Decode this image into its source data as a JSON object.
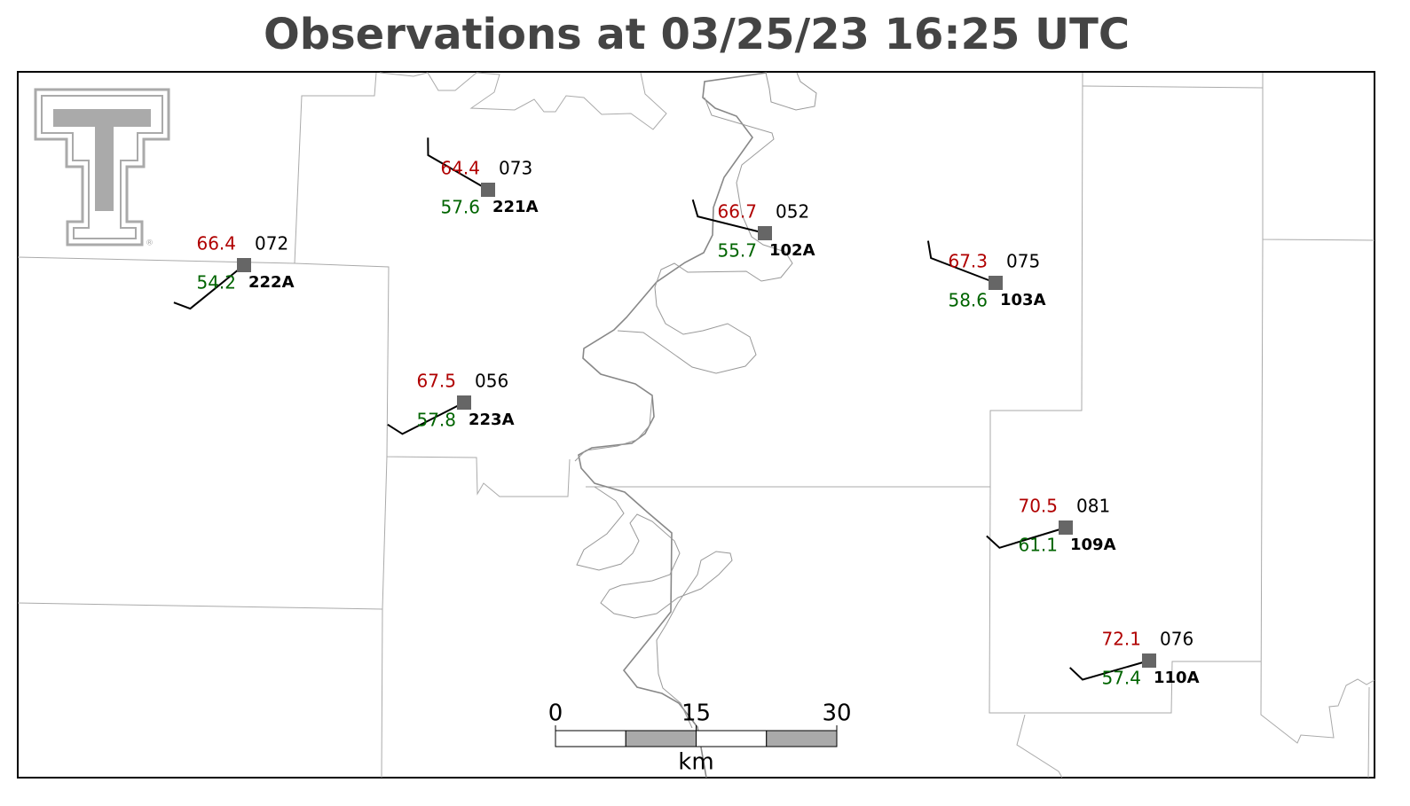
{
  "title": "Observations at 03/25/23 16:25 UTC",
  "stations": [
    {
      "id": "222A",
      "temperature": "66.4",
      "dewpoint": "54.2",
      "pressure": "072",
      "wind_dir": 231,
      "wind_speed": 10
    },
    {
      "id": "221A",
      "temperature": "64.4",
      "dewpoint": "57.6",
      "pressure": "073",
      "wind_dir": 300,
      "wind_speed": 10
    },
    {
      "id": "102A",
      "temperature": "66.7",
      "dewpoint": "55.7",
      "pressure": "052",
      "wind_dir": 284,
      "wind_speed": 10
    },
    {
      "id": "103A",
      "temperature": "67.3",
      "dewpoint": "58.6",
      "pressure": "075",
      "wind_dir": 291,
      "wind_speed": 10
    },
    {
      "id": "223A",
      "temperature": "67.5",
      "dewpoint": "57.8",
      "pressure": "056",
      "wind_dir": 243,
      "wind_speed": 10
    },
    {
      "id": "109A",
      "temperature": "70.5",
      "dewpoint": "61.1",
      "pressure": "081",
      "wind_dir": 253,
      "wind_speed": 10
    },
    {
      "id": "110A",
      "temperature": "72.1",
      "dewpoint": "57.4",
      "pressure": "076",
      "wind_dir": 254,
      "wind_speed": 10
    }
  ],
  "scale_bar": {
    "ticks": [
      0,
      15,
      30
    ],
    "unit": "km"
  }
}
